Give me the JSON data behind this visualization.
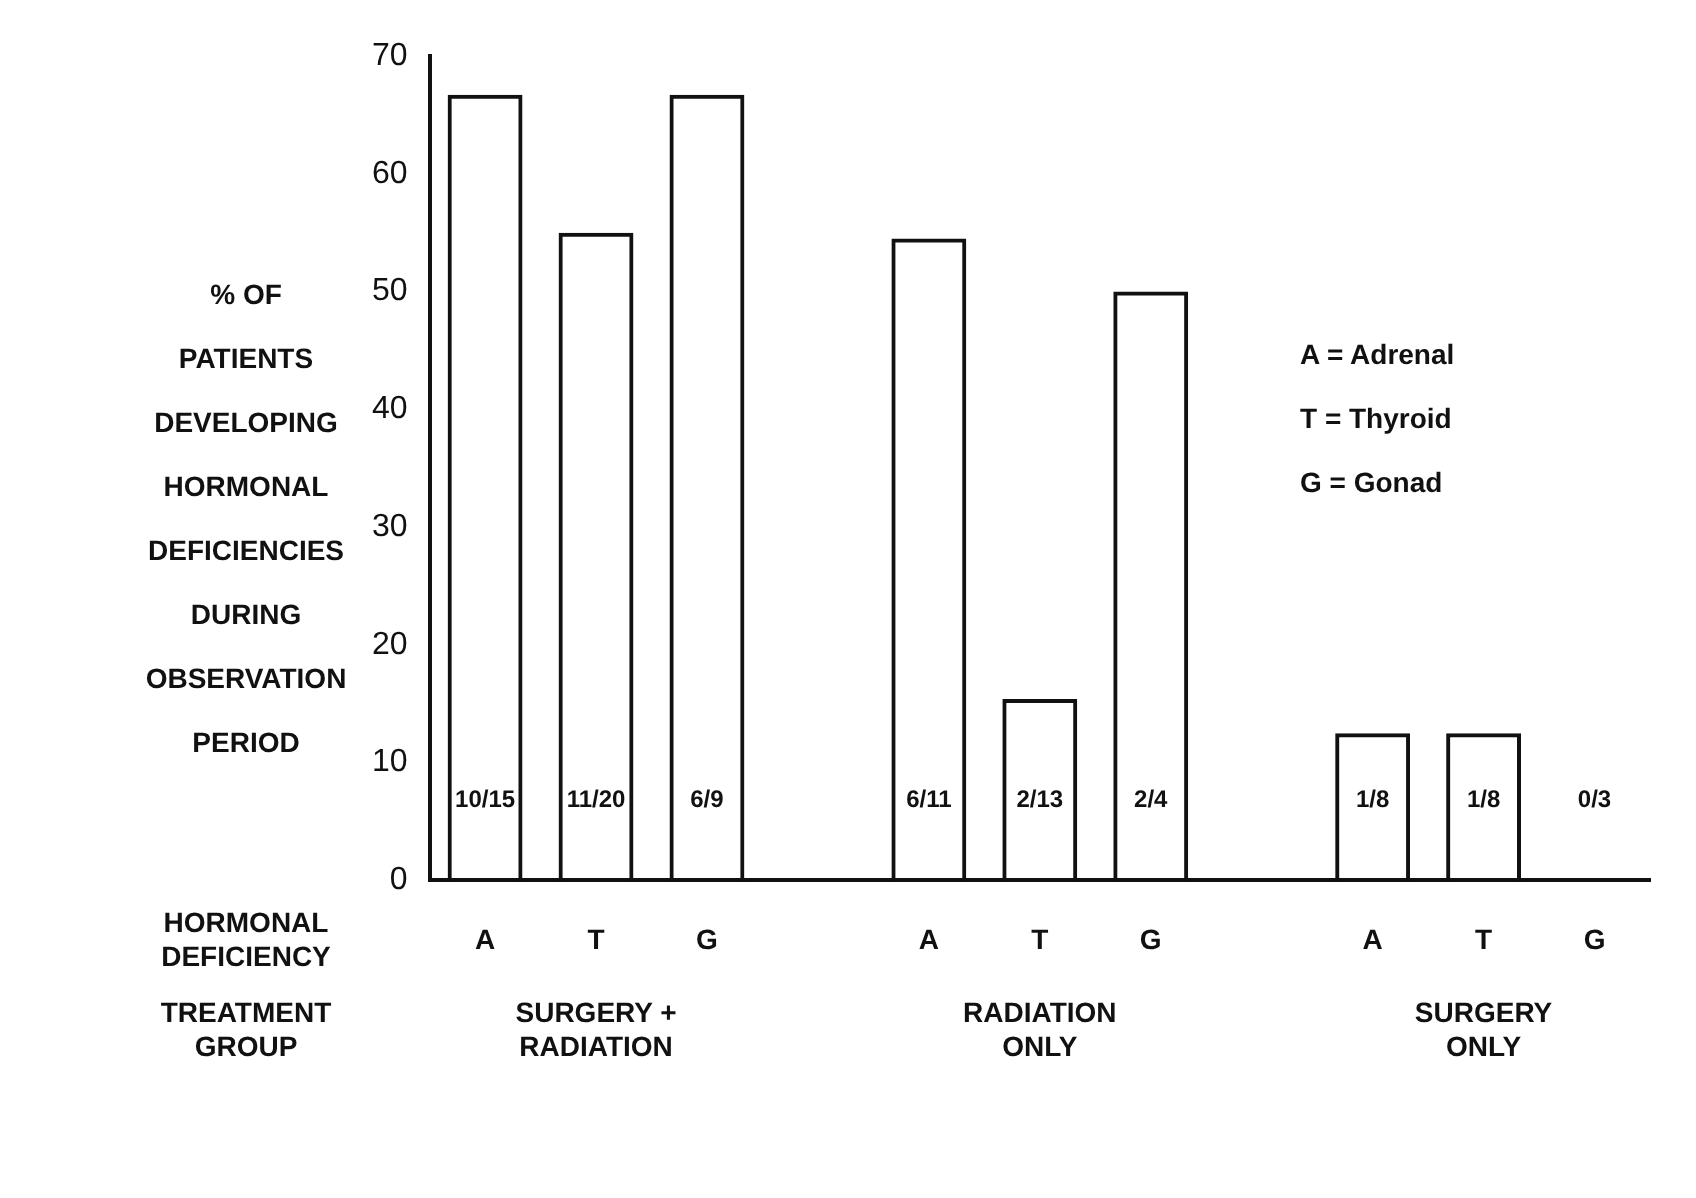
{
  "chart_data": {
    "type": "bar",
    "ylabel": "% OF PATIENTS DEVELOPING HORMONAL DEFICIENCIES DURING OBSERVATION PERIOD",
    "xlabel": "HORMONAL DEFICIENCY",
    "categories": [
      "A",
      "T",
      "G",
      null,
      "A",
      "T",
      "G",
      null,
      "A",
      "T",
      "G"
    ],
    "values": [
      66.7,
      55,
      66.7,
      null,
      54.5,
      15.4,
      50,
      null,
      12.5,
      12.5,
      0
    ],
    "color": "#111111",
    "ylim": [
      0,
      70
    ],
    "yticks": [
      0,
      10,
      20,
      30,
      40,
      50,
      60,
      70
    ],
    "grid": false,
    "legend": false,
    "annotations": [
      "TREATMENT GROUP",
      "SURGERY + RADIATION",
      "RADIATION ONLY",
      "SURGERY ONLY",
      "A = Adrenal",
      "T = Thyroid",
      "G = Gonad",
      "10/15",
      "11/20",
      "6/9",
      "6/11",
      "2/13",
      "2/4",
      "1/8",
      "1/8",
      "0/3"
    ]
  }
}
